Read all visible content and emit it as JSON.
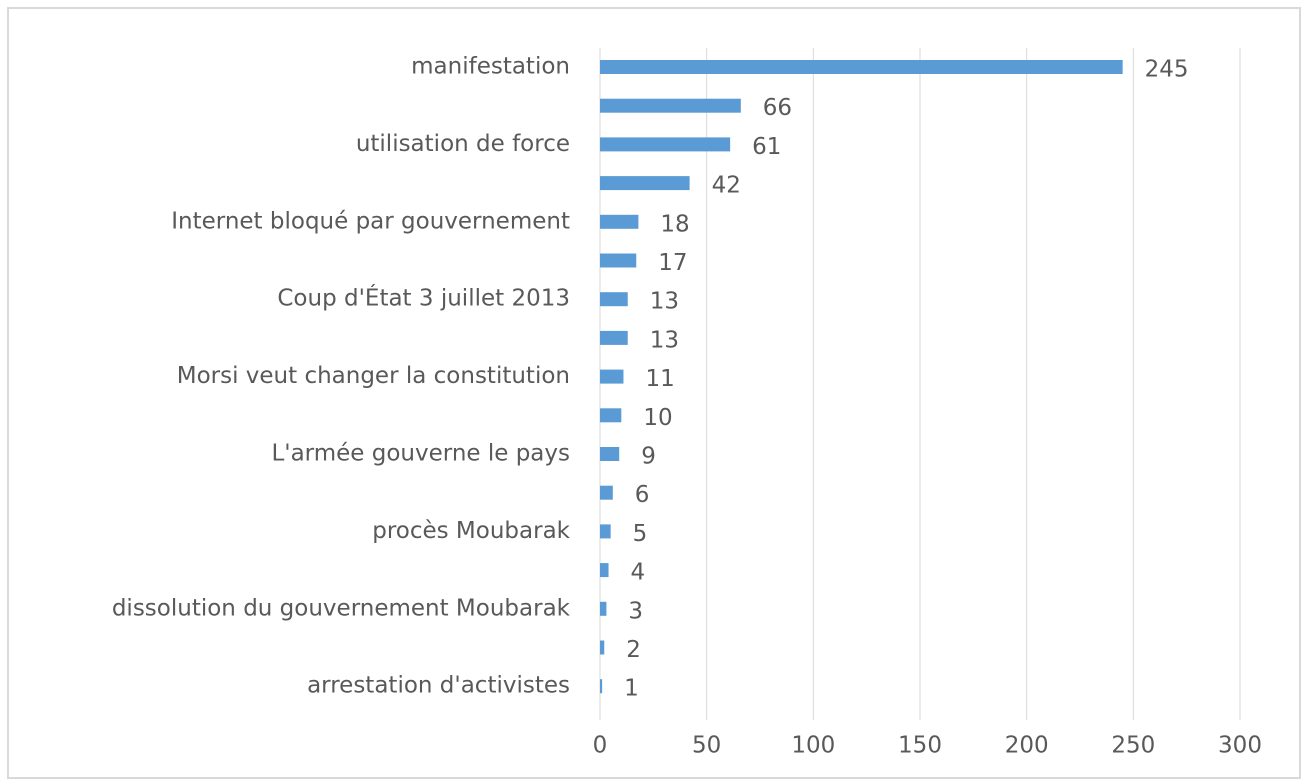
{
  "chart_data": {
    "type": "barh",
    "categories": [
      "manifestation",
      null,
      "utilisation de force",
      null,
      "Internet bloqué par gouvernement",
      null,
      "Coup d'État 3 juillet 2013",
      null,
      "Morsi veut changer la constitution",
      null,
      "L'armée gouverne le pays",
      null,
      "procès Moubarak",
      null,
      "dissolution du gouvernement Moubarak",
      null,
      "arrestation d'activistes"
    ],
    "values": [
      245,
      66,
      61,
      42,
      18,
      17,
      13,
      13,
      11,
      10,
      9,
      6,
      5,
      4,
      3,
      2,
      1
    ],
    "color": "#5b9bd5",
    "xlim": [
      0,
      300
    ],
    "xticks": [
      0,
      50,
      100,
      150,
      200,
      250,
      300
    ],
    "grid": true
  }
}
